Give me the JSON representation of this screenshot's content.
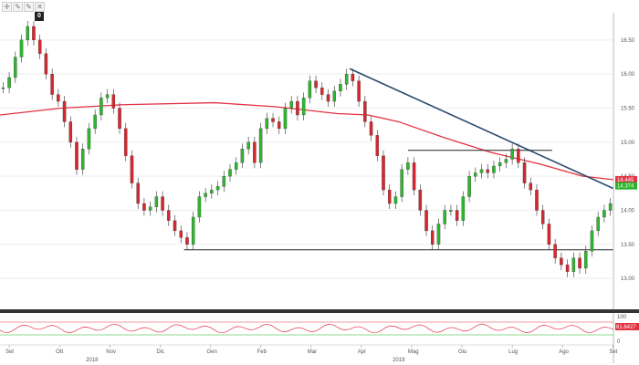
{
  "toolbar": {
    "icons": [
      "crosshair-icon",
      "pencil-icon",
      "pencil-icon",
      "close-icon"
    ],
    "zero_label": "0"
  },
  "chart_data": {
    "type": "candlestick",
    "y_ticks": [
      13.0,
      13.5,
      14.0,
      14.5,
      15.0,
      15.5,
      16.0,
      16.5
    ],
    "ylim": [
      12.6,
      16.9
    ],
    "x_ticks": [
      "Set",
      "Ott",
      "Nov",
      "Dic",
      "Gen",
      "Feb",
      "Mar",
      "Apr",
      "Mag",
      "Giu",
      "Lug",
      "Ago",
      "Set"
    ],
    "years": [
      "2018",
      "2019"
    ],
    "price_labels": [
      {
        "value": "14.445",
        "color": "#e33244"
      },
      {
        "value": "14.374",
        "color": "#27b227"
      }
    ],
    "moving_average": {
      "color": "#e33244",
      "points": [
        [
          0,
          15.4
        ],
        [
          0.1,
          15.5
        ],
        [
          0.2,
          15.55
        ],
        [
          0.35,
          15.58
        ],
        [
          0.45,
          15.52
        ],
        [
          0.55,
          15.42
        ],
        [
          0.6,
          15.4
        ],
        [
          0.65,
          15.3
        ],
        [
          0.72,
          15.08
        ],
        [
          0.8,
          14.85
        ],
        [
          0.88,
          14.68
        ],
        [
          0.95,
          14.5
        ],
        [
          1,
          14.45
        ]
      ]
    },
    "trendline": {
      "color": "#2b4a6f",
      "from": [
        0.57,
        16.08
      ],
      "to": [
        1,
        14.32
      ]
    },
    "resistance": {
      "from": [
        0.665,
        14.88
      ],
      "to": [
        0.9,
        14.88
      ]
    },
    "support": {
      "from": [
        0.3,
        13.42
      ],
      "to": [
        1,
        13.42
      ]
    },
    "candles": [
      [
        0.005,
        15.8
      ],
      [
        0.015,
        15.95
      ],
      [
        0.025,
        16.25
      ],
      [
        0.035,
        16.5
      ],
      [
        0.045,
        16.7
      ],
      [
        0.055,
        16.5
      ],
      [
        0.065,
        16.3
      ],
      [
        0.075,
        16.0
      ],
      [
        0.085,
        15.7
      ],
      [
        0.095,
        15.6
      ],
      [
        0.105,
        15.3
      ],
      [
        0.115,
        15.0
      ],
      [
        0.125,
        14.6
      ],
      [
        0.135,
        14.9
      ],
      [
        0.145,
        15.2
      ],
      [
        0.155,
        15.4
      ],
      [
        0.165,
        15.65
      ],
      [
        0.175,
        15.7
      ],
      [
        0.185,
        15.5
      ],
      [
        0.195,
        15.2
      ],
      [
        0.205,
        14.8
      ],
      [
        0.215,
        14.4
      ],
      [
        0.225,
        14.1
      ],
      [
        0.235,
        14.0
      ],
      [
        0.245,
        14.05
      ],
      [
        0.255,
        14.2
      ],
      [
        0.265,
        14.0
      ],
      [
        0.275,
        13.85
      ],
      [
        0.285,
        13.7
      ],
      [
        0.295,
        13.6
      ],
      [
        0.305,
        13.5
      ],
      [
        0.315,
        13.9
      ],
      [
        0.325,
        14.2
      ],
      [
        0.335,
        14.25
      ],
      [
        0.345,
        14.3
      ],
      [
        0.355,
        14.35
      ],
      [
        0.365,
        14.5
      ],
      [
        0.375,
        14.6
      ],
      [
        0.385,
        14.7
      ],
      [
        0.395,
        14.9
      ],
      [
        0.405,
        15.0
      ],
      [
        0.415,
        14.7
      ],
      [
        0.425,
        15.2
      ],
      [
        0.435,
        15.35
      ],
      [
        0.445,
        15.3
      ],
      [
        0.455,
        15.2
      ],
      [
        0.465,
        15.5
      ],
      [
        0.475,
        15.6
      ],
      [
        0.485,
        15.4
      ],
      [
        0.495,
        15.65
      ],
      [
        0.505,
        15.9
      ],
      [
        0.515,
        15.8
      ],
      [
        0.525,
        15.7
      ],
      [
        0.535,
        15.6
      ],
      [
        0.545,
        15.75
      ],
      [
        0.555,
        15.85
      ],
      [
        0.565,
        16.0
      ],
      [
        0.575,
        15.9
      ],
      [
        0.585,
        15.6
      ],
      [
        0.595,
        15.3
      ],
      [
        0.605,
        15.1
      ],
      [
        0.615,
        14.8
      ],
      [
        0.625,
        14.3
      ],
      [
        0.635,
        14.1
      ],
      [
        0.645,
        14.2
      ],
      [
        0.655,
        14.6
      ],
      [
        0.665,
        14.7
      ],
      [
        0.675,
        14.3
      ],
      [
        0.685,
        14.0
      ],
      [
        0.695,
        13.7
      ],
      [
        0.705,
        13.5
      ],
      [
        0.715,
        13.8
      ],
      [
        0.725,
        14.0
      ],
      [
        0.735,
        14.0
      ],
      [
        0.745,
        13.85
      ],
      [
        0.755,
        14.2
      ],
      [
        0.765,
        14.5
      ],
      [
        0.775,
        14.55
      ],
      [
        0.785,
        14.6
      ],
      [
        0.795,
        14.55
      ],
      [
        0.805,
        14.65
      ],
      [
        0.815,
        14.7
      ],
      [
        0.825,
        14.75
      ],
      [
        0.835,
        14.9
      ],
      [
        0.845,
        14.7
      ],
      [
        0.855,
        14.4
      ],
      [
        0.865,
        14.3
      ],
      [
        0.875,
        14.0
      ],
      [
        0.885,
        13.8
      ],
      [
        0.895,
        13.5
      ],
      [
        0.905,
        13.3
      ],
      [
        0.915,
        13.2
      ],
      [
        0.925,
        13.1
      ],
      [
        0.935,
        13.3
      ],
      [
        0.945,
        13.15
      ],
      [
        0.955,
        13.4
      ],
      [
        0.965,
        13.7
      ],
      [
        0.975,
        13.9
      ],
      [
        0.985,
        14.0
      ],
      [
        0.995,
        14.1
      ]
    ],
    "oscillator": {
      "ticks": [
        100,
        0
      ],
      "value_label": "61.6427",
      "color": "#e33244",
      "mid_color": "#27b227"
    }
  }
}
